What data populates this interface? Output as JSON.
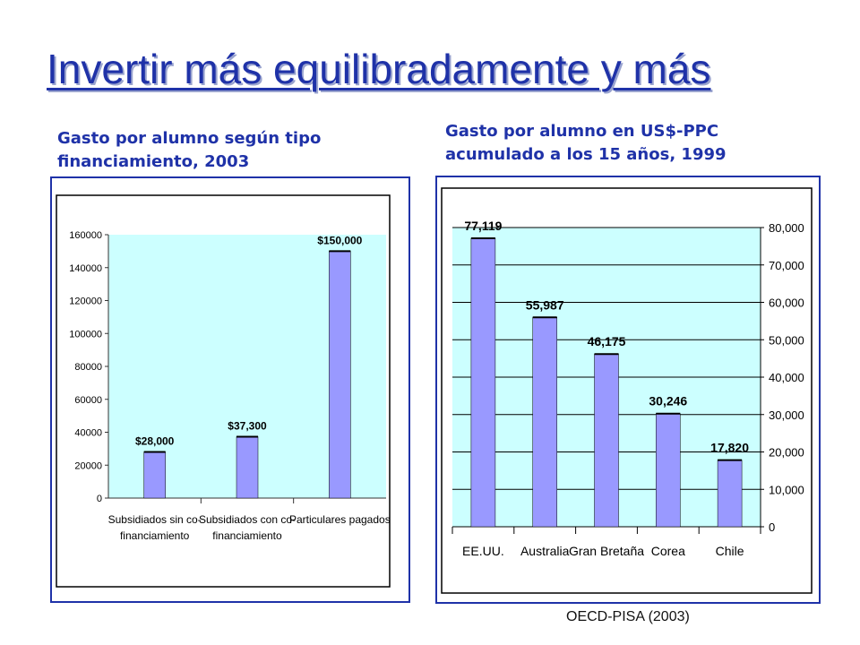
{
  "slide": {
    "title": "Invertir más equilibradamente y más",
    "source": "OECD-PISA (2003)"
  },
  "colors": {
    "title": "#1f32a8",
    "bar": "#9999ff",
    "plot_bg": "#ccffff",
    "frame": "#1f32a8"
  },
  "chart_data": [
    {
      "type": "bar",
      "caption": "Gasto por alumno según tipo financiamiento, 2003",
      "categories": [
        "Subsidiados sin co-financiamiento",
        "Subsidiados con co-financiamiento",
        "Particulares pagados"
      ],
      "category_lines": [
        [
          "Subsidiados sin co-",
          "financiamiento"
        ],
        [
          "Subsidiados con co-",
          "financiamiento"
        ],
        [
          "Particulares pagados"
        ]
      ],
      "values": [
        28000,
        37300,
        150000
      ],
      "data_labels": [
        "$28,000",
        "$37,300",
        "$150,000"
      ],
      "ylim": [
        0,
        160000
      ],
      "yticks": [
        0,
        20000,
        40000,
        60000,
        80000,
        100000,
        120000,
        140000,
        160000
      ],
      "ytick_labels": [
        "0",
        "20000",
        "40000",
        "60000",
        "80000",
        "100000",
        "120000",
        "140000",
        "160000"
      ],
      "y_axis_side": "left",
      "grid": false,
      "xlabel": "",
      "ylabel": ""
    },
    {
      "type": "bar",
      "caption": "Gasto por alumno en US$-PPC acumulado a los 15 años, 1999",
      "categories": [
        "EE.UU.",
        "Australia",
        "Gran Bretaña",
        "Corea",
        "Chile"
      ],
      "values": [
        77119,
        55987,
        46175,
        30246,
        17820
      ],
      "data_labels": [
        "77,119",
        "55,987",
        "46,175",
        "30,246",
        "17,820"
      ],
      "ylim": [
        0,
        80000
      ],
      "yticks": [
        0,
        10000,
        20000,
        30000,
        40000,
        50000,
        60000,
        70000,
        80000
      ],
      "ytick_labels": [
        "0",
        "10,000",
        "20,000",
        "30,000",
        "40,000",
        "50,000",
        "60,000",
        "70,000",
        "80,000"
      ],
      "y_axis_side": "right",
      "grid": true,
      "xlabel": "",
      "ylabel": ""
    }
  ]
}
